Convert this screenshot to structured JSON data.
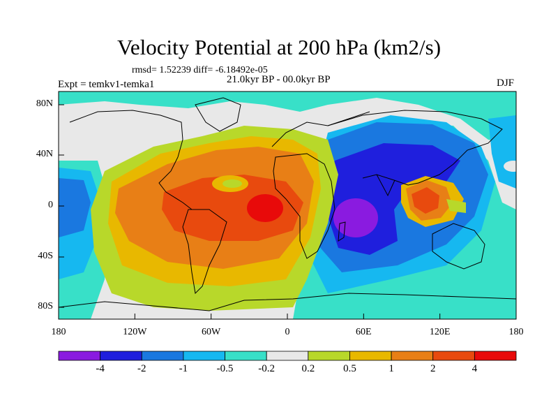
{
  "title": "Velocity Potential at 200 hPa (km2/s)",
  "stats_line": "rmsd= 1.52239 diff= -6.18492e-05",
  "period_line": "21.0kyr BP - 00.0kyr BP",
  "expt_line": "Expt = temkv1-temka1",
  "season": "DJF",
  "y_ticks": [
    "80N",
    "40N",
    "0",
    "40S",
    "80S"
  ],
  "x_ticks": [
    "180",
    "120W",
    "60W",
    "0",
    "60E",
    "120E",
    "180"
  ],
  "colorbar": {
    "colors": [
      "#8a1be0",
      "#1f1fdd",
      "#1a78e0",
      "#16b8f0",
      "#38e0c8",
      "#e8e8e8",
      "#b8d82a",
      "#e8b800",
      "#e87f16",
      "#e84a0e",
      "#e80a0a"
    ],
    "labels": [
      "-4",
      "-2",
      "-1",
      "-0.5",
      "-0.2",
      "0.2",
      "0.5",
      "1",
      "2",
      "4"
    ]
  },
  "chart_data": {
    "type": "heatmap",
    "title": "Velocity Potential at 200 hPa (km2/s)",
    "variable": "200 hPa velocity potential difference",
    "units": "km2/s",
    "comparison": "21.0kyr BP - 00.0kyr BP",
    "season": "DJF",
    "rmsd": 1.52239,
    "diff": -6.18492e-05,
    "contour_levels": [
      -4,
      -2,
      -1,
      -0.5,
      -0.2,
      0.2,
      0.5,
      1,
      2,
      4
    ],
    "lon_range": [
      -180,
      180
    ],
    "lat_range": [
      -90,
      90
    ],
    "features": [
      {
        "name": "positive maximum over tropical Atlantic",
        "lon": -15,
        "lat": 0,
        "value_range": "> 4"
      },
      {
        "name": "positive region over South America",
        "lon": -55,
        "lat": -5,
        "value_range": "2 to 4"
      },
      {
        "name": "positive region over Indonesia",
        "lon": 110,
        "lat": 5,
        "value_range": "2 to 4"
      },
      {
        "name": "negative minimum over southern Africa / Indian Ocean",
        "lon": 45,
        "lat": -10,
        "value_range": "< -4"
      },
      {
        "name": "negative region over Asia and Indian Ocean",
        "lon": 80,
        "lat": 20,
        "value_range": "-4 to -2"
      }
    ]
  }
}
